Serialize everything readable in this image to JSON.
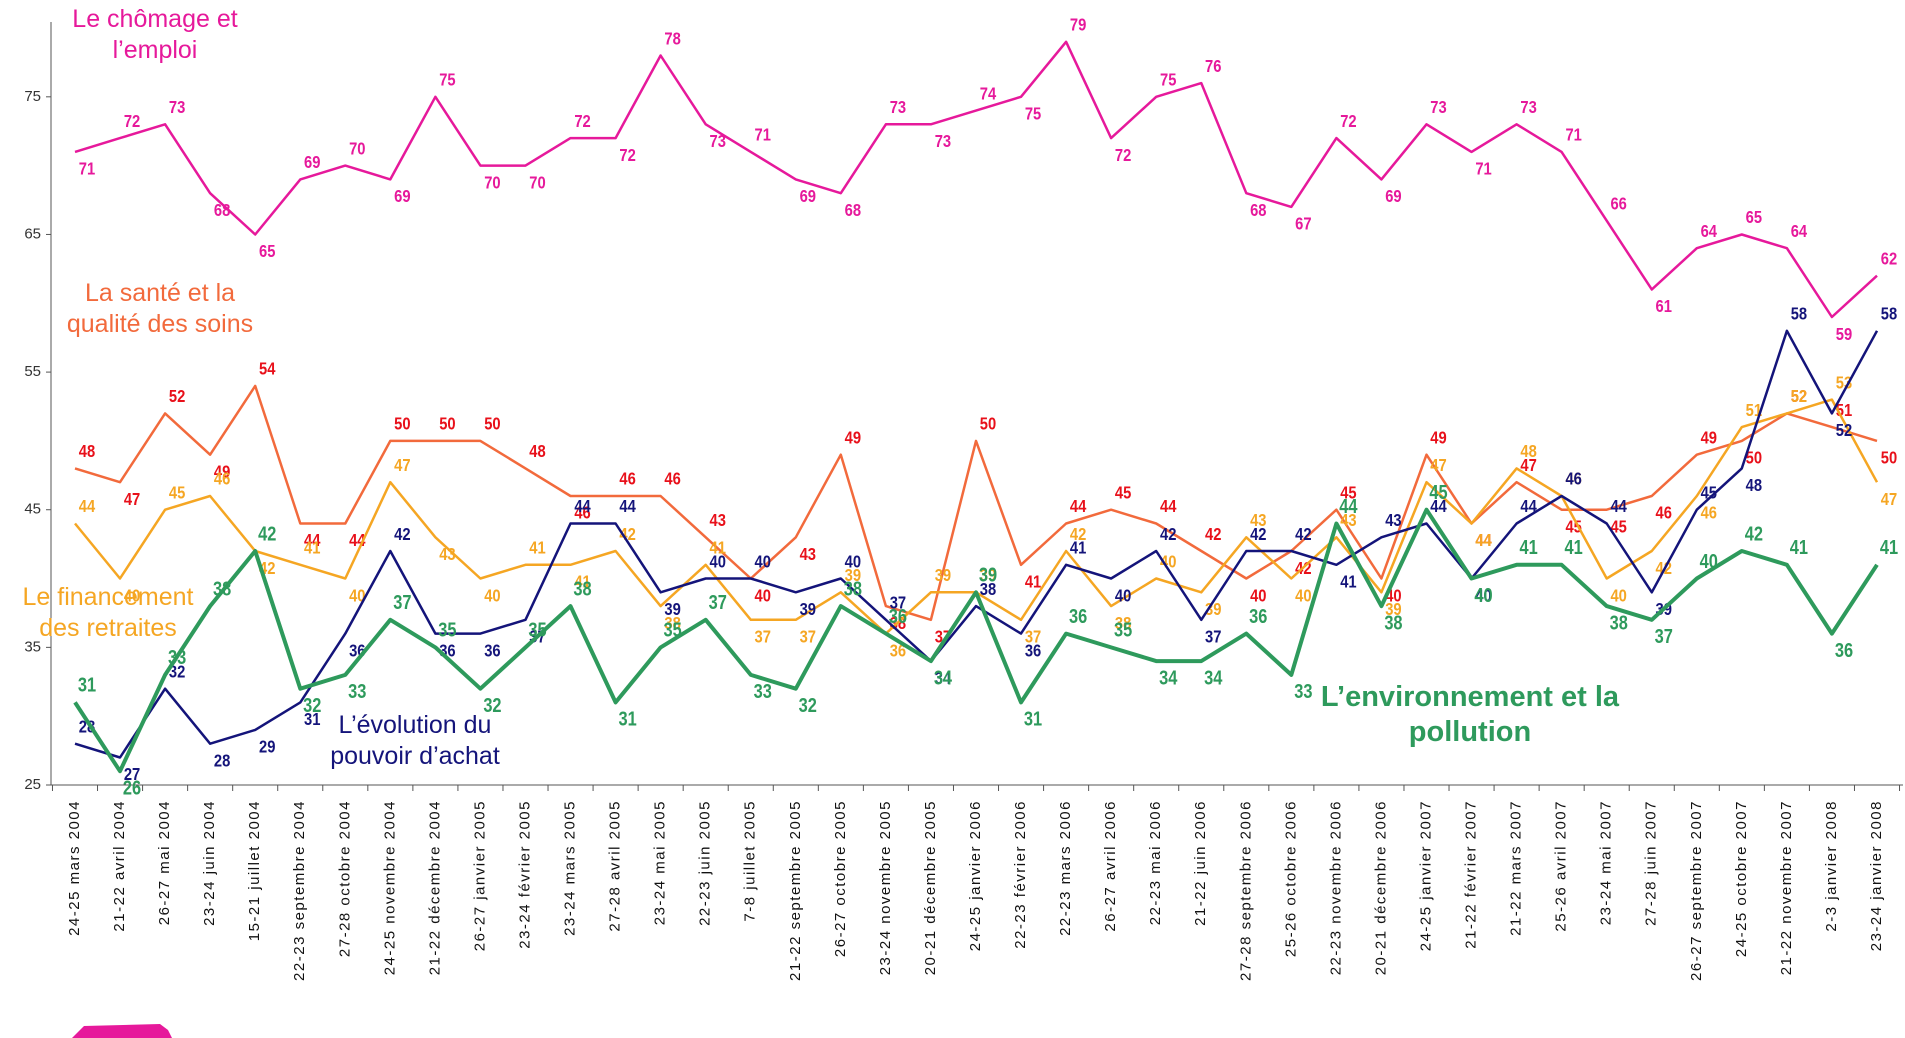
{
  "chart_data": {
    "type": "line",
    "categories": [
      "24-25 mars 2004",
      "21-22 avril 2004",
      "26-27 mai 2004",
      "23-24 juin 2004",
      "15-21 juillet 2004",
      "22-23 septembre 2004",
      "27-28 octobre 2004",
      "24-25 novembre 2004",
      "21-22 décembre 2004",
      "26-27 janvier 2005",
      "23-24 février 2005",
      "23-24 mars 2005",
      "27-28 avril 2005",
      "23-24 mai 2005",
      "22-23 juin 2005",
      "7-8 juillet 2005",
      "21-22 septembre 2005",
      "26-27 octobre 2005",
      "23-24 novembre 2005",
      "20-21 décembre 2005",
      "24-25 janvier 2006",
      "22-23 février 2006",
      "22-23 mars 2006",
      "26-27 avril 2006",
      "22-23 mai 2006",
      "21-22 juin 2006",
      "27-28 septembre 2006",
      "25-26 octobre 2006",
      "22-23 novembre 2006",
      "20-21 décembre 2006",
      "24-25 janvier 2007",
      "21-22 février 2007",
      "21-22 mars 2007",
      "25-26 avril 2007",
      "23-24 mai 2007",
      "27-28 juin 2007",
      "26-27 septembre 2007",
      "24-25 octobre 2007",
      "21-22 novembre 2007",
      "2-3 janvier 2008",
      "23-24 janvier 2008"
    ],
    "series": [
      {
        "name": "Le chômage et l’emploi",
        "color": "#e6199b",
        "label_color": "#e6199b",
        "values": [
          71,
          72,
          73,
          68,
          65,
          69,
          70,
          69,
          75,
          70,
          70,
          72,
          72,
          78,
          73,
          71,
          69,
          68,
          73,
          73,
          74,
          75,
          79,
          72,
          75,
          76,
          68,
          67,
          72,
          69,
          73,
          71,
          73,
          71,
          66,
          61,
          64,
          65,
          64,
          59,
          62
        ]
      },
      {
        "name": "La santé et la qualité des soins",
        "color": "#f26a3c",
        "label_color": "#e8101a",
        "values": [
          48,
          47,
          52,
          49,
          54,
          44,
          44,
          50,
          50,
          50,
          48,
          46,
          46,
          46,
          43,
          40,
          43,
          49,
          38,
          37,
          50,
          41,
          44,
          45,
          44,
          42,
          40,
          42,
          45,
          40,
          49,
          44,
          47,
          45,
          45,
          46,
          49,
          50,
          52,
          51,
          50
        ]
      },
      {
        "name": "Le financement des retraites",
        "color": "#f5a623",
        "label_color": "#f5a623",
        "values": [
          44,
          40,
          45,
          46,
          42,
          41,
          40,
          47,
          43,
          40,
          41,
          41,
          42,
          38,
          41,
          37,
          37,
          39,
          36,
          39,
          39,
          37,
          42,
          38,
          40,
          39,
          43,
          40,
          43,
          39,
          47,
          44,
          48,
          46,
          40,
          42,
          46,
          51,
          52,
          53,
          47
        ]
      },
      {
        "name": "L’évolution du pouvoir d’achat",
        "color": "#14147a",
        "label_color": "#14147a",
        "values": [
          28,
          27,
          32,
          28,
          29,
          31,
          36,
          42,
          36,
          36,
          37,
          44,
          44,
          39,
          40,
          40,
          39,
          40,
          37,
          34,
          38,
          36,
          41,
          40,
          42,
          37,
          42,
          42,
          41,
          43,
          44,
          40,
          44,
          46,
          44,
          39,
          45,
          48,
          58,
          52,
          58
        ]
      },
      {
        "name": "L’environnement et la pollution",
        "color": "#2e9a5c",
        "label_color": "#2e9a5c",
        "values": [
          31,
          26,
          33,
          38,
          42,
          32,
          33,
          37,
          35,
          32,
          35,
          38,
          31,
          35,
          37,
          33,
          32,
          38,
          36,
          34,
          39,
          31,
          36,
          35,
          34,
          34,
          36,
          33,
          44,
          38,
          45,
          40,
          41,
          41,
          38,
          37,
          40,
          42,
          41,
          36,
          41
        ]
      }
    ],
    "ylim": [
      25,
      80
    ],
    "yticks": [
      25,
      35,
      45,
      55,
      65,
      75
    ]
  }
}
